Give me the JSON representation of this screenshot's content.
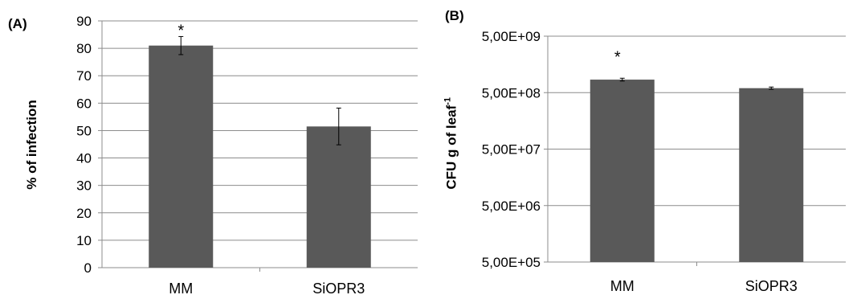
{
  "chart_data": [
    {
      "type": "bar",
      "panel_label": "(A)",
      "categories": [
        "MM",
        "SiOPR3"
      ],
      "values": [
        81,
        51.5
      ],
      "error": [
        3.3,
        6.7
      ],
      "significance": [
        "*",
        ""
      ],
      "title": "",
      "xlabel": "",
      "ylabel": "% of infection",
      "ylim": [
        0,
        90
      ],
      "yticks": [
        0,
        10,
        20,
        30,
        40,
        50,
        60,
        70,
        80,
        90
      ],
      "grid": true,
      "bar_color": "#595959"
    },
    {
      "type": "bar",
      "panel_label": "(B)",
      "categories": [
        "MM",
        "SiOPR3"
      ],
      "values": [
        850000000,
        600000000
      ],
      "error_log": [
        0.025,
        0.02
      ],
      "significance": [
        "*",
        ""
      ],
      "title": "",
      "xlabel": "",
      "ylabel_main": "CFU g of leaf",
      "ylabel_sup": "-1",
      "yscale": "log",
      "ylim": [
        500000,
        5000000000
      ],
      "yticks": [
        500000,
        5000000,
        50000000,
        500000000,
        5000000000
      ],
      "ytick_labels": [
        "5,00E+05",
        "5,00E+06",
        "5,00E+07",
        "5,00E+08",
        "5,00E+09"
      ],
      "grid": true,
      "bar_color": "#595959"
    }
  ]
}
